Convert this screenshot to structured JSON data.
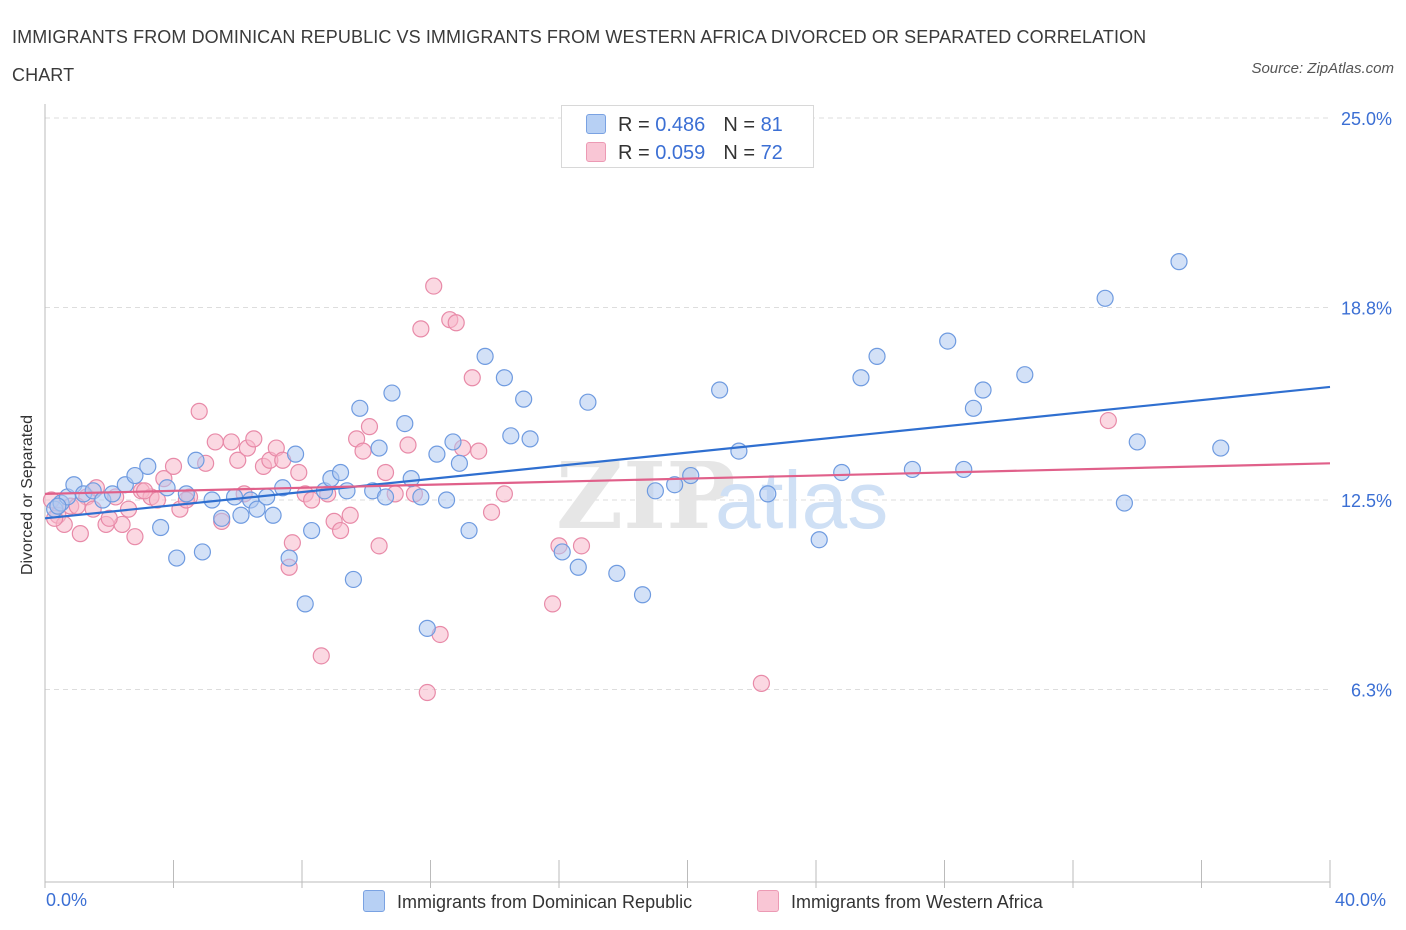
{
  "title": "IMMIGRANTS FROM DOMINICAN REPUBLIC VS IMMIGRANTS FROM WESTERN AFRICA DIVORCED OR SEPARATED CORRELATION CHART",
  "source": "Source: ZipAtlas.com",
  "watermark": {
    "zip": "ZIP",
    "atlas": "atlas"
  },
  "legend": {
    "rows": [
      {
        "r_label": "R =",
        "r_value": "0.486",
        "n_label": "N =",
        "n_value": "81"
      },
      {
        "r_label": "R =",
        "r_value": "0.059",
        "n_label": "N =",
        "n_value": "72"
      }
    ]
  },
  "colors": {
    "blue_fill": "#aec8f0",
    "blue_stroke": "#6f9be0",
    "blue_line": "#2f6fd0",
    "pink_fill": "#f7b8cb",
    "pink_stroke": "#e88aa8",
    "pink_line": "#e0608a",
    "axis_text": "#3b6fd4",
    "grid": "#dddddd"
  },
  "chart_data": {
    "type": "scatter",
    "title": "IMMIGRANTS FROM DOMINICAN REPUBLIC VS IMMIGRANTS FROM WESTERN AFRICA DIVORCED OR SEPARATED CORRELATION CHART",
    "xlabel": "",
    "ylabel": "Divorced or Separated",
    "xlim": [
      0,
      40
    ],
    "ylim": [
      0,
      25
    ],
    "x_tick_labels": [
      "0.0%",
      "40.0%"
    ],
    "y_ticks": [
      {
        "value": 6.3,
        "label": "6.3%"
      },
      {
        "value": 12.5,
        "label": "12.5%"
      },
      {
        "value": 18.8,
        "label": "18.8%"
      },
      {
        "value": 25.0,
        "label": "25.0%"
      }
    ],
    "grid": true,
    "series": [
      {
        "name": "Immigrants from Dominican Republic",
        "color": "#aec8f0",
        "trend": {
          "x": [
            0,
            40
          ],
          "y": [
            11.9,
            16.2
          ]
        },
        "points": [
          [
            0.3,
            12.2
          ],
          [
            0.5,
            12.4
          ],
          [
            0.7,
            12.6
          ],
          [
            0.9,
            13.0
          ],
          [
            1.2,
            12.7
          ],
          [
            1.5,
            12.8
          ],
          [
            1.8,
            12.5
          ],
          [
            2.1,
            12.7
          ],
          [
            2.5,
            13.0
          ],
          [
            2.8,
            13.3
          ],
          [
            3.2,
            13.6
          ],
          [
            3.6,
            11.6
          ],
          [
            3.8,
            12.9
          ],
          [
            4.1,
            10.6
          ],
          [
            4.4,
            12.7
          ],
          [
            4.7,
            13.8
          ],
          [
            4.9,
            10.8
          ],
          [
            5.2,
            12.5
          ],
          [
            5.5,
            11.9
          ],
          [
            5.9,
            12.6
          ],
          [
            6.1,
            12.0
          ],
          [
            6.4,
            12.5
          ],
          [
            6.6,
            12.2
          ],
          [
            6.9,
            12.6
          ],
          [
            7.1,
            12.0
          ],
          [
            7.4,
            12.9
          ],
          [
            7.6,
            10.6
          ],
          [
            7.8,
            14.0
          ],
          [
            8.1,
            9.1
          ],
          [
            8.3,
            11.5
          ],
          [
            8.7,
            12.8
          ],
          [
            8.9,
            13.2
          ],
          [
            9.2,
            13.4
          ],
          [
            9.4,
            12.8
          ],
          [
            9.6,
            9.9
          ],
          [
            9.8,
            15.5
          ],
          [
            10.2,
            12.8
          ],
          [
            10.4,
            14.2
          ],
          [
            10.6,
            12.6
          ],
          [
            10.8,
            16.0
          ],
          [
            11.2,
            15.0
          ],
          [
            11.4,
            13.2
          ],
          [
            11.7,
            12.6
          ],
          [
            11.9,
            8.3
          ],
          [
            12.2,
            14.0
          ],
          [
            12.5,
            12.5
          ],
          [
            12.7,
            14.4
          ],
          [
            12.9,
            13.7
          ],
          [
            13.2,
            11.5
          ],
          [
            13.7,
            17.2
          ],
          [
            14.3,
            16.5
          ],
          [
            14.5,
            14.6
          ],
          [
            14.9,
            15.8
          ],
          [
            15.1,
            14.5
          ],
          [
            16.1,
            10.8
          ],
          [
            16.6,
            10.3
          ],
          [
            16.9,
            15.7
          ],
          [
            17.8,
            10.1
          ],
          [
            18.6,
            9.4
          ],
          [
            19.0,
            12.8
          ],
          [
            19.6,
            13.0
          ],
          [
            20.1,
            13.3
          ],
          [
            21.0,
            16.1
          ],
          [
            21.6,
            14.1
          ],
          [
            22.5,
            12.7
          ],
          [
            24.1,
            11.2
          ],
          [
            24.8,
            13.4
          ],
          [
            25.4,
            16.5
          ],
          [
            25.9,
            17.2
          ],
          [
            27.0,
            13.5
          ],
          [
            28.1,
            17.7
          ],
          [
            28.6,
            13.5
          ],
          [
            28.9,
            15.5
          ],
          [
            29.2,
            16.1
          ],
          [
            30.5,
            16.6
          ],
          [
            33.0,
            19.1
          ],
          [
            33.6,
            12.4
          ],
          [
            34.0,
            14.4
          ],
          [
            35.3,
            20.3
          ],
          [
            36.6,
            14.2
          ],
          [
            0.4,
            12.3
          ]
        ]
      },
      {
        "name": "Immigrants from Western Africa",
        "color": "#f7b8cb",
        "trend": {
          "x": [
            0,
            40
          ],
          "y": [
            12.7,
            13.7
          ]
        },
        "points": [
          [
            0.2,
            12.5
          ],
          [
            0.4,
            12.0
          ],
          [
            0.6,
            11.7
          ],
          [
            0.8,
            12.3
          ],
          [
            1.1,
            11.4
          ],
          [
            1.3,
            12.6
          ],
          [
            1.6,
            12.9
          ],
          [
            1.9,
            11.7
          ],
          [
            2.2,
            12.6
          ],
          [
            2.4,
            11.7
          ],
          [
            2.6,
            12.2
          ],
          [
            2.8,
            11.3
          ],
          [
            3.0,
            12.8
          ],
          [
            3.3,
            12.6
          ],
          [
            3.5,
            12.5
          ],
          [
            3.7,
            13.2
          ],
          [
            4.0,
            13.6
          ],
          [
            4.2,
            12.2
          ],
          [
            4.5,
            12.6
          ],
          [
            4.8,
            15.4
          ],
          [
            5.0,
            13.7
          ],
          [
            5.3,
            14.4
          ],
          [
            5.5,
            11.8
          ],
          [
            5.8,
            14.4
          ],
          [
            6.0,
            13.8
          ],
          [
            6.3,
            14.2
          ],
          [
            6.5,
            14.5
          ],
          [
            6.8,
            13.6
          ],
          [
            7.0,
            13.8
          ],
          [
            7.2,
            14.2
          ],
          [
            7.4,
            13.8
          ],
          [
            7.6,
            10.3
          ],
          [
            7.7,
            11.1
          ],
          [
            7.9,
            13.4
          ],
          [
            8.1,
            12.7
          ],
          [
            8.3,
            12.5
          ],
          [
            8.6,
            7.4
          ],
          [
            8.8,
            12.7
          ],
          [
            9.0,
            11.8
          ],
          [
            9.2,
            11.5
          ],
          [
            9.5,
            12.0
          ],
          [
            9.7,
            14.5
          ],
          [
            9.9,
            14.1
          ],
          [
            10.1,
            14.9
          ],
          [
            10.4,
            11.0
          ],
          [
            10.6,
            13.4
          ],
          [
            10.9,
            12.7
          ],
          [
            11.3,
            14.3
          ],
          [
            11.5,
            12.7
          ],
          [
            11.7,
            18.1
          ],
          [
            11.9,
            6.2
          ],
          [
            12.1,
            19.5
          ],
          [
            12.3,
            8.1
          ],
          [
            12.6,
            18.4
          ],
          [
            12.8,
            18.3
          ],
          [
            13.0,
            14.2
          ],
          [
            13.3,
            16.5
          ],
          [
            13.5,
            14.1
          ],
          [
            14.3,
            12.7
          ],
          [
            15.8,
            9.1
          ],
          [
            16.0,
            11.0
          ],
          [
            16.7,
            11.0
          ],
          [
            22.3,
            6.5
          ],
          [
            33.1,
            15.1
          ],
          [
            0.3,
            11.9
          ],
          [
            1.0,
            12.3
          ],
          [
            1.5,
            12.2
          ],
          [
            2.0,
            11.9
          ],
          [
            3.1,
            12.8
          ],
          [
            4.4,
            12.5
          ],
          [
            6.2,
            12.7
          ],
          [
            13.9,
            12.1
          ]
        ]
      }
    ]
  },
  "bottom_legend": [
    {
      "label": "Immigrants from Dominican Republic"
    },
    {
      "label": "Immigrants from Western Africa"
    }
  ]
}
